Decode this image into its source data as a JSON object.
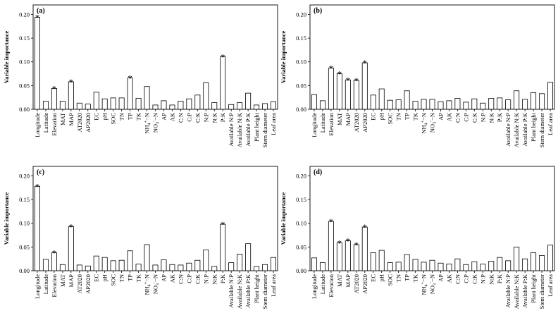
{
  "chart_data": [
    {
      "type": "bar",
      "panel_label": "(a)",
      "ylabel": "Variable importance",
      "ylim": [
        0,
        0.22
      ],
      "yticks": [
        "0.00",
        "0.05",
        "0.10",
        "0.15",
        "0.20"
      ],
      "categories": [
        "Longitude",
        "Latitude",
        "Elevation",
        "MAT",
        "MAP",
        "AT2020",
        "AP2020",
        "EC",
        "pH",
        "SOC",
        "TN",
        "TP",
        "TK",
        "NH4+-N",
        "NO3--N",
        "AP",
        "AK",
        "C:N",
        "C:P",
        "C:K",
        "N:P",
        "N:K",
        "P:K",
        "Available N:P",
        "Available N:K",
        "Available P:K",
        "Plant height",
        "Stem diameter",
        "Leaf area"
      ],
      "values": [
        0.194,
        0.017,
        0.044,
        0.017,
        0.058,
        0.013,
        0.011,
        0.036,
        0.022,
        0.024,
        0.024,
        0.066,
        0.023,
        0.048,
        0.009,
        0.018,
        0.009,
        0.017,
        0.022,
        0.03,
        0.056,
        0.014,
        0.111,
        0.01,
        0.014,
        0.034,
        0.009,
        0.012,
        0.016
      ],
      "significant": [
        "Longitude",
        "Elevation",
        "MAP",
        "TP",
        "P:K"
      ],
      "annotation": "*"
    },
    {
      "type": "bar",
      "panel_label": "(b)",
      "ylabel": "Variable importance",
      "ylim": [
        0,
        0.22
      ],
      "yticks": [
        "0.00",
        "0.05",
        "0.10",
        "0.15",
        "0.20"
      ],
      "categories": [
        "Longitude",
        "Latitude",
        "Elevation",
        "MAT",
        "MAP",
        "AT2020",
        "AP2020",
        "EC",
        "pH",
        "SOC",
        "TN",
        "TP",
        "TK",
        "NH4+-N",
        "NO3--N",
        "AP",
        "AK",
        "C:N",
        "C:P",
        "C:K",
        "N:P",
        "N:K",
        "P:K",
        "Available N:P",
        "Available N:K",
        "Available P:K",
        "Plant height",
        "Stem diameter",
        "Leaf area"
      ],
      "values": [
        0.031,
        0.018,
        0.087,
        0.075,
        0.062,
        0.061,
        0.098,
        0.03,
        0.043,
        0.019,
        0.02,
        0.039,
        0.017,
        0.021,
        0.021,
        0.016,
        0.018,
        0.023,
        0.015,
        0.022,
        0.013,
        0.023,
        0.024,
        0.02,
        0.039,
        0.021,
        0.035,
        0.033,
        0.057
      ],
      "significant": [
        "Elevation",
        "MAT",
        "MAP",
        "AT2020",
        "AP2020"
      ],
      "annotation": "*"
    },
    {
      "type": "bar",
      "panel_label": "(c)",
      "ylabel": "Variable importance",
      "ylim": [
        0,
        0.22
      ],
      "yticks": [
        "0.00",
        "0.05",
        "0.10",
        "0.15",
        "0.20"
      ],
      "categories": [
        "Longitude",
        "Latitude",
        "Elevation",
        "MAT",
        "MAP",
        "AT2020",
        "AP2020",
        "EC",
        "pH",
        "SOC",
        "TN",
        "TP",
        "TK",
        "NH4+-N",
        "NO3--N",
        "AP",
        "AK",
        "C:N",
        "C:P",
        "C:K",
        "N:P",
        "N:K",
        "P:K",
        "Available N:P",
        "Available N:K",
        "Available P:K",
        "Plant height",
        "Stem diameter",
        "Leaf area"
      ],
      "values": [
        0.178,
        0.024,
        0.038,
        0.013,
        0.093,
        0.012,
        0.01,
        0.031,
        0.028,
        0.021,
        0.022,
        0.042,
        0.014,
        0.055,
        0.012,
        0.023,
        0.013,
        0.012,
        0.016,
        0.022,
        0.044,
        0.009,
        0.098,
        0.017,
        0.035,
        0.057,
        0.009,
        0.013,
        0.028
      ],
      "significant": [
        "Longitude",
        "Elevation",
        "MAP",
        "P:K"
      ],
      "annotation": "*"
    },
    {
      "type": "bar",
      "panel_label": "(d)",
      "ylabel": "Variable importance",
      "ylim": [
        0,
        0.22
      ],
      "yticks": [
        "0.00",
        "0.05",
        "0.10",
        "0.15",
        "0.20"
      ],
      "categories": [
        "Longitude",
        "Latitude",
        "Elevation",
        "MAT",
        "MAP",
        "AT2020",
        "AP2020",
        "EC",
        "pH",
        "SOC",
        "TN",
        "TP",
        "TK",
        "NH4+-N",
        "NO3--N",
        "AP",
        "AK",
        "C:N",
        "C:P",
        "C:K",
        "N:P",
        "N:K",
        "P:K",
        "Available N:P",
        "Available N:K",
        "Available P:K",
        "Plant height",
        "Stem diameter",
        "Leaf area"
      ],
      "values": [
        0.027,
        0.017,
        0.104,
        0.059,
        0.063,
        0.055,
        0.092,
        0.038,
        0.043,
        0.017,
        0.018,
        0.034,
        0.024,
        0.018,
        0.022,
        0.016,
        0.014,
        0.025,
        0.013,
        0.019,
        0.014,
        0.02,
        0.028,
        0.021,
        0.05,
        0.025,
        0.038,
        0.032,
        0.054
      ],
      "significant": [
        "Elevation",
        "MAT",
        "MAP",
        "AT2020",
        "AP2020"
      ],
      "annotation": "*"
    }
  ]
}
